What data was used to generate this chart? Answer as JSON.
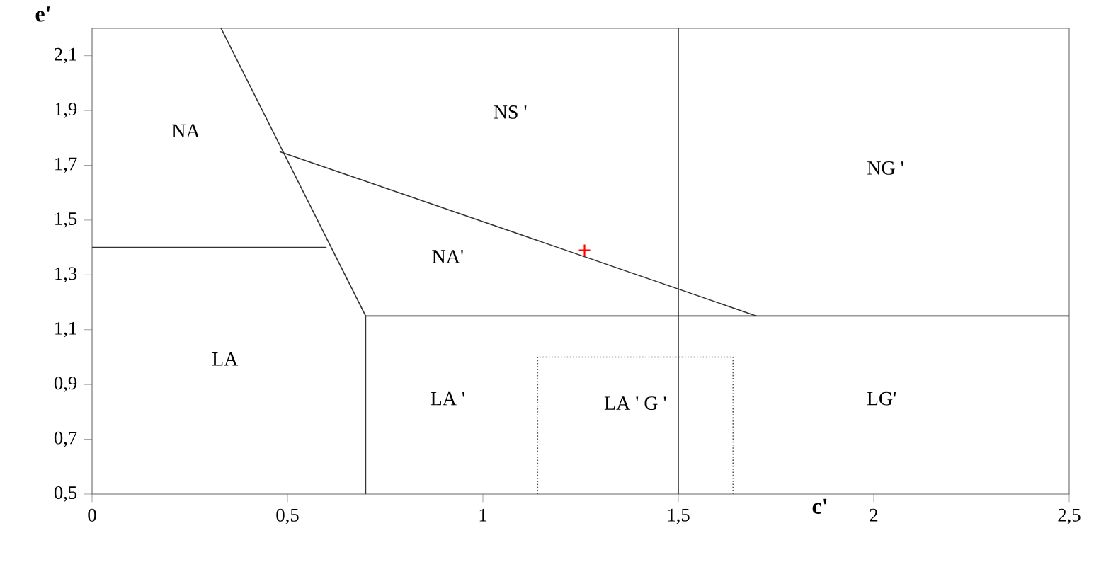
{
  "chart_data": {
    "type": "line",
    "xlabel": "c'",
    "ylabel": "e'",
    "xlim": [
      0,
      2.5
    ],
    "ylim": [
      0.5,
      2.2
    ],
    "xticks": [
      0,
      {
        "value": 0.5,
        "label": "0,5"
      },
      1,
      {
        "value": 1.5,
        "label": "1,5"
      },
      2,
      {
        "value": 2.5,
        "label": "2,5"
      }
    ],
    "yticks": [
      {
        "value": 0.5,
        "label": "0,5"
      },
      {
        "value": 0.7,
        "label": "0,7"
      },
      {
        "value": 0.9,
        "label": "0,9"
      },
      {
        "value": 1.1,
        "label": "1,1"
      },
      {
        "value": 1.3,
        "label": "1,3"
      },
      {
        "value": 1.5,
        "label": "1,5"
      },
      {
        "value": 1.7,
        "label": "1,7"
      },
      {
        "value": 1.9,
        "label": "1,9"
      },
      {
        "value": 2.1,
        "label": "2,1"
      }
    ],
    "series": [
      {
        "color": "#333333",
        "x": [
          0.33,
          0.7
        ],
        "values": [
          2.2,
          1.15
        ]
      },
      {
        "color": "#333333",
        "x": [
          0,
          0.6
        ],
        "values": [
          1.4,
          1.4
        ]
      },
      {
        "color": "#333333",
        "x": [
          0.48,
          1.7
        ],
        "values": [
          1.75,
          1.15
        ]
      },
      {
        "color": "#333333",
        "x": [
          0.7,
          0.7,
          2.5
        ],
        "values": [
          0.5,
          1.15,
          1.15
        ]
      },
      {
        "color": "#333333",
        "x": [
          1.5,
          1.5
        ],
        "values": [
          0.5,
          2.2
        ]
      },
      {
        "color": "#555555",
        "line_style": "dotted",
        "x": [
          1.14,
          1.14,
          1.64,
          1.64
        ],
        "values": [
          0.5,
          1.0,
          1.0,
          0.5
        ]
      },
      {
        "type": "scatter",
        "color": "#ff0000",
        "marker": "cross",
        "x": [
          1.26
        ],
        "values": [
          1.39
        ]
      }
    ],
    "annotations": [
      "NA",
      "LA",
      "NS '",
      "NG '",
      "NA'",
      "LA '",
      "LA ' G '",
      "LG'"
    ]
  }
}
